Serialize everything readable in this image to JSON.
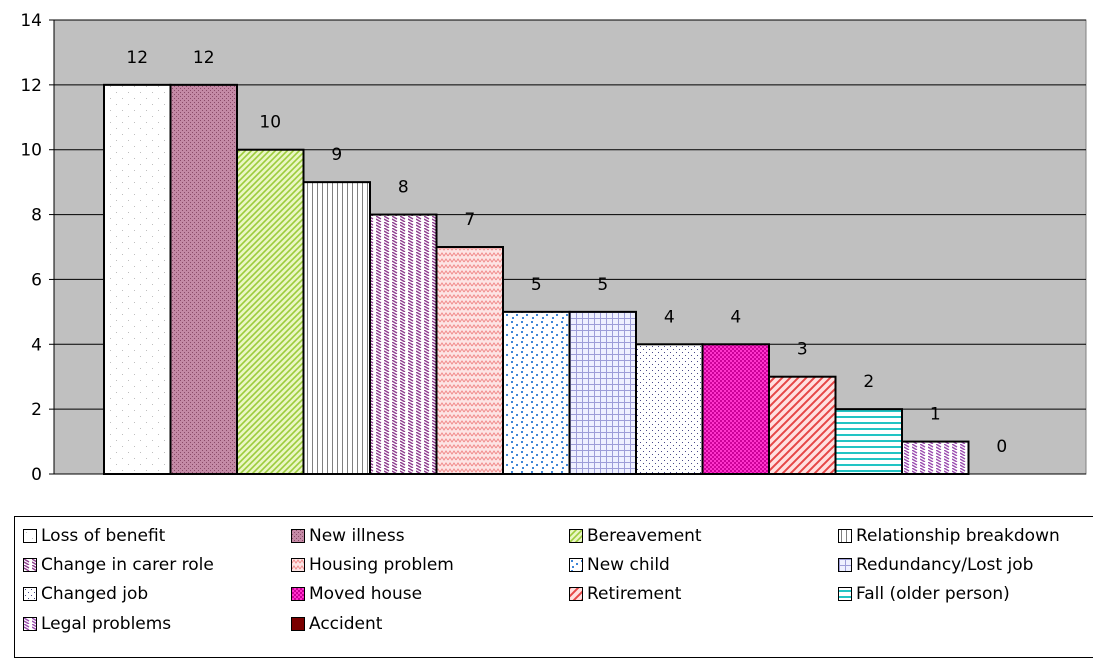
{
  "chart_data": {
    "type": "bar",
    "ylim": [
      0,
      14
    ],
    "yticks": [
      0,
      2,
      4,
      6,
      8,
      10,
      12,
      14
    ],
    "grid": true,
    "legend_position": "bottom",
    "series": [
      {
        "name": "Loss of benefit",
        "value": 12,
        "label": "12",
        "color": "#ffffff",
        "pattern": "sparse-dots",
        "fg": "#bfbfbf"
      },
      {
        "name": "New illness",
        "value": 12,
        "label": "12",
        "color": "#c48aa6",
        "pattern": "dense-dots",
        "fg": "#8a4a68"
      },
      {
        "name": "Bereavement",
        "value": 10,
        "label": "10",
        "color": "#eaf6c4",
        "pattern": "diagonal",
        "fg": "#9ccc3c"
      },
      {
        "name": "Relationship breakdown",
        "value": 9,
        "label": "9",
        "color": "#ffffff",
        "pattern": "vertical",
        "fg": "#808080"
      },
      {
        "name": "Change in carer role",
        "value": 8,
        "label": "8",
        "color": "#ffffff",
        "pattern": "dashed-diagonal",
        "fg": "#8f3f8f"
      },
      {
        "name": "Housing problem",
        "value": 7,
        "label": "7",
        "color": "#fde4e4",
        "pattern": "zigzag",
        "fg": "#f08a8a"
      },
      {
        "name": "New child",
        "value": 5,
        "label": "5",
        "color": "#ffffff",
        "pattern": "confetti",
        "fg": "#3f86d6"
      },
      {
        "name": "Redundancy/Lost job",
        "value": 5,
        "label": "5",
        "color": "#eef0ff",
        "pattern": "grid",
        "fg": "#9d9dd8"
      },
      {
        "name": "Changed job",
        "value": 4,
        "label": "4",
        "color": "#ffffff",
        "pattern": "small-dots",
        "fg": "#4a4a8a"
      },
      {
        "name": "Moved house",
        "value": 4,
        "label": "4",
        "color": "#ff33cc",
        "pattern": "checker",
        "fg": "#cc0099"
      },
      {
        "name": "Retirement",
        "value": 3,
        "label": "3",
        "color": "#ffe0e0",
        "pattern": "diagonal-wide",
        "fg": "#e64646"
      },
      {
        "name": "Fall (older person)",
        "value": 2,
        "label": "2",
        "color": "#ffffff",
        "pattern": "horizontal",
        "fg": "#22c4c4"
      },
      {
        "name": "Legal problems",
        "value": 1,
        "label": "1",
        "color": "#ffffff",
        "pattern": "dashed-diagonal-2",
        "fg": "#9c4fb0"
      },
      {
        "name": "Accident",
        "value": 0,
        "label": "0",
        "color": "#7a0000",
        "pattern": "solid",
        "fg": "#7a0000"
      }
    ]
  },
  "colors": {
    "plot_background": "#c0c0c0",
    "gridline": "#000000",
    "bar_border": "#000000"
  }
}
